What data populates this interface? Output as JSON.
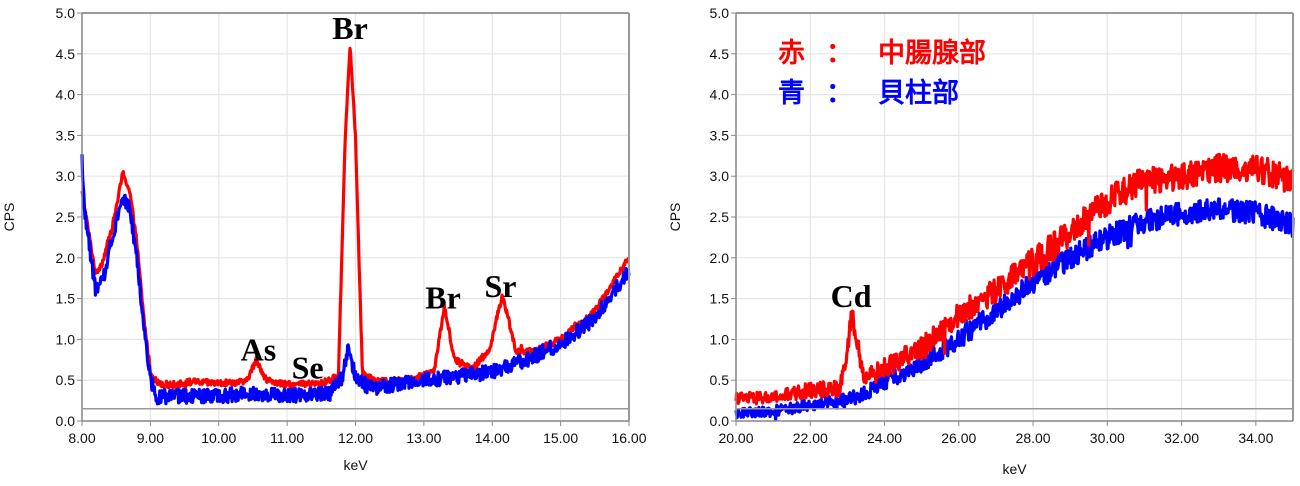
{
  "chart_data": [
    {
      "id": "left",
      "type": "line",
      "title": "",
      "xlabel": "keV",
      "ylabel": "CPS",
      "xlim": [
        8.0,
        16.0
      ],
      "ylim": [
        0.0,
        5.0
      ],
      "grid": true,
      "x_ticks": [
        "8.00",
        "9.00",
        "10.00",
        "11.00",
        "12.00",
        "13.00",
        "14.00",
        "15.00",
        "16.00"
      ],
      "y_ticks": [
        "0.0",
        "0.5",
        "1.0",
        "1.5",
        "2.0",
        "2.5",
        "3.0",
        "3.5",
        "4.0",
        "4.5",
        "5.0"
      ],
      "baseline_line": 0.15,
      "series": [
        {
          "name": "中腸腺部",
          "color": "#ff0000",
          "points": [
            [
              8.0,
              2.8
            ],
            [
              8.1,
              2.3
            ],
            [
              8.2,
              1.8
            ],
            [
              8.3,
              1.95
            ],
            [
              8.45,
              2.4
            ],
            [
              8.6,
              3.05
            ],
            [
              8.7,
              2.8
            ],
            [
              8.8,
              2.2
            ],
            [
              8.9,
              1.3
            ],
            [
              9.0,
              0.6
            ],
            [
              9.1,
              0.47
            ],
            [
              9.3,
              0.44
            ],
            [
              9.6,
              0.48
            ],
            [
              10.0,
              0.46
            ],
            [
              10.4,
              0.48
            ],
            [
              10.55,
              0.75
            ],
            [
              10.7,
              0.5
            ],
            [
              11.0,
              0.44
            ],
            [
              11.5,
              0.46
            ],
            [
              11.75,
              0.55
            ],
            [
              11.85,
              3.5
            ],
            [
              11.92,
              4.6
            ],
            [
              12.0,
              3.5
            ],
            [
              12.1,
              0.6
            ],
            [
              12.3,
              0.48
            ],
            [
              12.8,
              0.5
            ],
            [
              13.15,
              0.62
            ],
            [
              13.3,
              1.4
            ],
            [
              13.45,
              0.75
            ],
            [
              13.7,
              0.65
            ],
            [
              13.95,
              0.85
            ],
            [
              14.15,
              1.55
            ],
            [
              14.35,
              0.85
            ],
            [
              14.6,
              0.85
            ],
            [
              15.0,
              1.0
            ],
            [
              15.5,
              1.35
            ],
            [
              16.0,
              2.0
            ]
          ],
          "noise": 0.04
        },
        {
          "name": "貝柱部",
          "color": "#0000ff",
          "points": [
            [
              8.0,
              3.1
            ],
            [
              8.05,
              2.5
            ],
            [
              8.2,
              1.6
            ],
            [
              8.3,
              1.7
            ],
            [
              8.45,
              2.3
            ],
            [
              8.6,
              2.75
            ],
            [
              8.7,
              2.6
            ],
            [
              8.8,
              2.0
            ],
            [
              8.9,
              1.2
            ],
            [
              9.0,
              0.5
            ],
            [
              9.1,
              0.3
            ],
            [
              9.5,
              0.3
            ],
            [
              10.0,
              0.3
            ],
            [
              10.5,
              0.35
            ],
            [
              11.0,
              0.3
            ],
            [
              11.6,
              0.35
            ],
            [
              11.8,
              0.5
            ],
            [
              11.9,
              0.9
            ],
            [
              12.0,
              0.55
            ],
            [
              12.2,
              0.4
            ],
            [
              12.6,
              0.45
            ],
            [
              13.0,
              0.5
            ],
            [
              13.5,
              0.55
            ],
            [
              14.0,
              0.6
            ],
            [
              14.5,
              0.75
            ],
            [
              15.0,
              0.95
            ],
            [
              15.5,
              1.25
            ],
            [
              16.0,
              1.85
            ]
          ],
          "noise": 0.09
        }
      ],
      "annotations": [
        {
          "text": "Br",
          "x": 11.92,
          "y": 4.68
        },
        {
          "text": "As",
          "x": 10.58,
          "y": 0.74
        },
        {
          "text": "Se",
          "x": 11.3,
          "y": 0.52
        },
        {
          "text": "Br",
          "x": 13.28,
          "y": 1.38
        },
        {
          "text": "Sr",
          "x": 14.12,
          "y": 1.52
        }
      ]
    },
    {
      "id": "right",
      "type": "line",
      "title": "",
      "xlabel": "keV",
      "ylabel": "CPS",
      "xlim": [
        20.0,
        35.0
      ],
      "ylim": [
        0.0,
        5.0
      ],
      "grid": true,
      "x_ticks": [
        "20.00",
        "22.00",
        "24.00",
        "26.00",
        "28.00",
        "30.00",
        "32.00",
        "34.00"
      ],
      "y_ticks": [
        "0.0",
        "0.5",
        "1.0",
        "1.5",
        "2.0",
        "2.5",
        "3.0",
        "3.5",
        "4.0",
        "4.5",
        "5.0"
      ],
      "baseline_line": 0.15,
      "legend": [
        {
          "key": "赤",
          "sep": "：",
          "label": "中腸腺部",
          "color": "#ff0000"
        },
        {
          "key": "青",
          "sep": "：",
          "label": "貝柱部",
          "color": "#0000ff"
        }
      ],
      "series": [
        {
          "name": "中腸腺部",
          "color": "#ff0000",
          "points": [
            [
              20.0,
              0.28
            ],
            [
              21.0,
              0.28
            ],
            [
              22.0,
              0.38
            ],
            [
              22.8,
              0.4
            ],
            [
              23.0,
              0.9
            ],
            [
              23.12,
              1.3
            ],
            [
              23.25,
              0.95
            ],
            [
              23.45,
              0.5
            ],
            [
              24.0,
              0.65
            ],
            [
              25.0,
              0.9
            ],
            [
              26.0,
              1.3
            ],
            [
              27.0,
              1.6
            ],
            [
              28.0,
              1.95
            ],
            [
              29.0,
              2.3
            ],
            [
              30.0,
              2.7
            ],
            [
              31.0,
              2.95
            ],
            [
              32.0,
              3.0
            ],
            [
              33.0,
              3.1
            ],
            [
              34.0,
              3.1
            ],
            [
              35.0,
              2.95
            ]
          ],
          "noise": 0.17
        },
        {
          "name": "貝柱部",
          "color": "#0000ff",
          "points": [
            [
              20.0,
              0.1
            ],
            [
              21.0,
              0.12
            ],
            [
              22.0,
              0.2
            ],
            [
              23.0,
              0.25
            ],
            [
              23.5,
              0.35
            ],
            [
              24.0,
              0.48
            ],
            [
              25.0,
              0.7
            ],
            [
              26.0,
              1.0
            ],
            [
              27.0,
              1.35
            ],
            [
              28.0,
              1.7
            ],
            [
              29.0,
              2.0
            ],
            [
              30.0,
              2.25
            ],
            [
              31.0,
              2.45
            ],
            [
              32.0,
              2.55
            ],
            [
              33.0,
              2.6
            ],
            [
              34.0,
              2.55
            ],
            [
              35.0,
              2.4
            ]
          ],
          "noise": 0.14
        }
      ],
      "annotations": [
        {
          "text": "Cd",
          "x": 23.1,
          "y": 1.4
        }
      ]
    }
  ]
}
